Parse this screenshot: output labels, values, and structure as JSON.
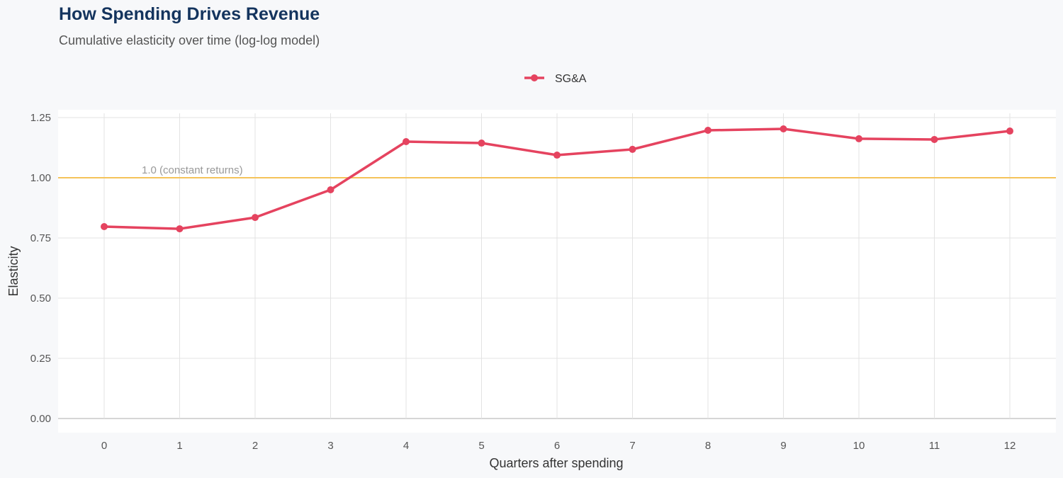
{
  "chart_data": {
    "type": "line",
    "title": "How Spending Drives Revenue",
    "subtitle": "Cumulative elasticity over time (log-log model)",
    "xlabel": "Quarters after spending",
    "ylabel": "Elasticity",
    "x": [
      0,
      1,
      2,
      3,
      4,
      5,
      6,
      7,
      8,
      9,
      10,
      11,
      12
    ],
    "xticks": [
      "0",
      "1",
      "2",
      "3",
      "4",
      "5",
      "6",
      "7",
      "8",
      "9",
      "10",
      "11",
      "12"
    ],
    "yticks": [
      "0.00",
      "0.25",
      "0.50",
      "0.75",
      "1.00",
      "1.25"
    ],
    "ylim": [
      0,
      1.25
    ],
    "grid": true,
    "legend_position": "top",
    "series": [
      {
        "name": "SG&A",
        "color": "#e5435f",
        "values": [
          0.797,
          0.788,
          0.835,
          0.95,
          1.15,
          1.144,
          1.094,
          1.118,
          1.197,
          1.203,
          1.162,
          1.159,
          1.194
        ]
      }
    ],
    "reference_line": {
      "y": 1.0,
      "label": "1.0 (constant returns)",
      "color": "#f5c35a"
    }
  }
}
